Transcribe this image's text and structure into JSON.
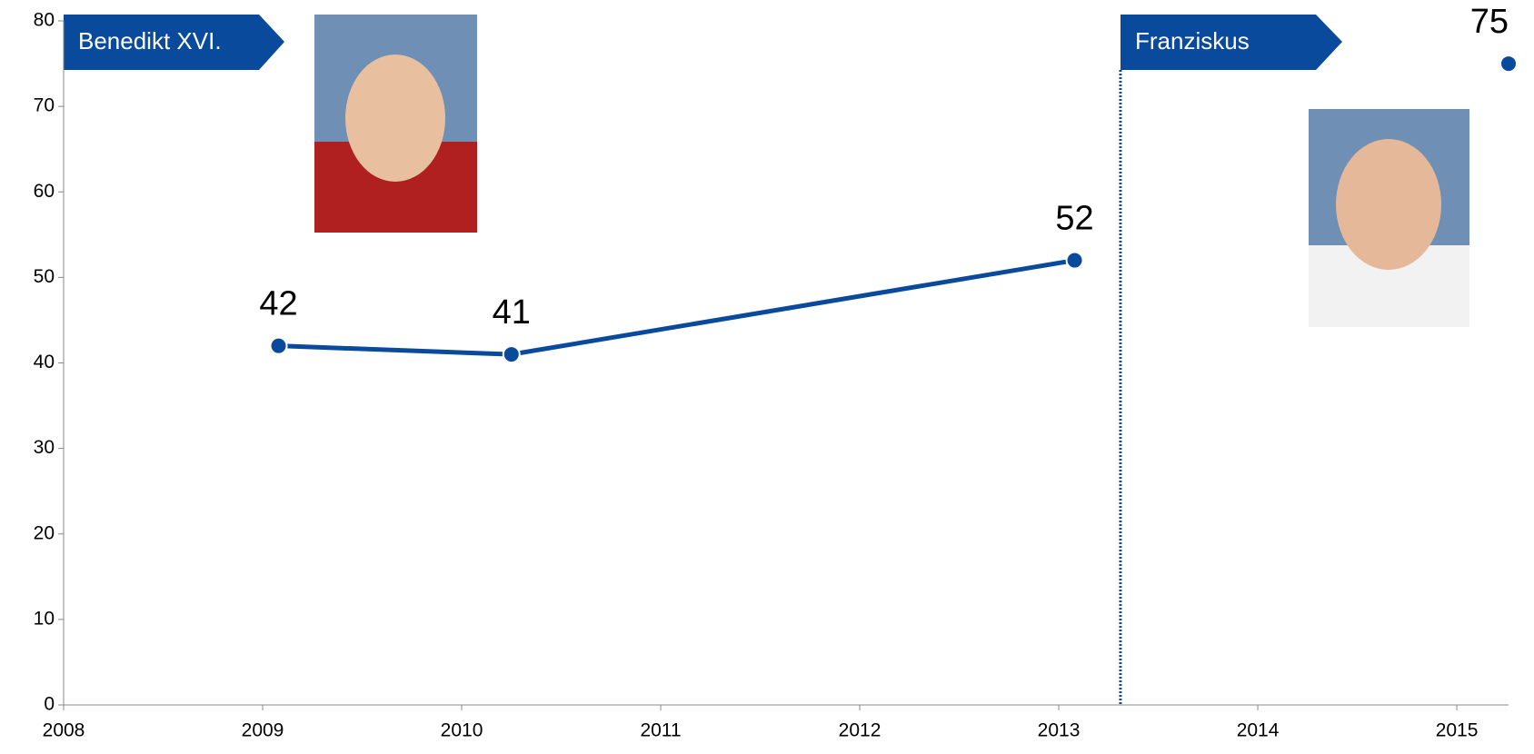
{
  "chart_data": {
    "type": "line",
    "xlim": [
      2008,
      2015.26
    ],
    "xticks": [
      2008,
      2009,
      2010,
      2011,
      2012,
      2013,
      2014,
      2015
    ],
    "ylim": [
      0,
      80
    ],
    "yticks": [
      0,
      10,
      20,
      30,
      40,
      50,
      60,
      70,
      80
    ],
    "series": [
      {
        "color": "#0a4a9c",
        "x": [
          2009.08,
          2010.25,
          2013.08
        ],
        "values": [
          42,
          41,
          52
        ]
      },
      {
        "color": "#0a4a9c",
        "x": [
          2015.26
        ],
        "values": [
          75
        ]
      }
    ],
    "vline": 2013.31,
    "annotations": [
      "Benedikt XVI.",
      "Franziskus"
    ]
  }
}
